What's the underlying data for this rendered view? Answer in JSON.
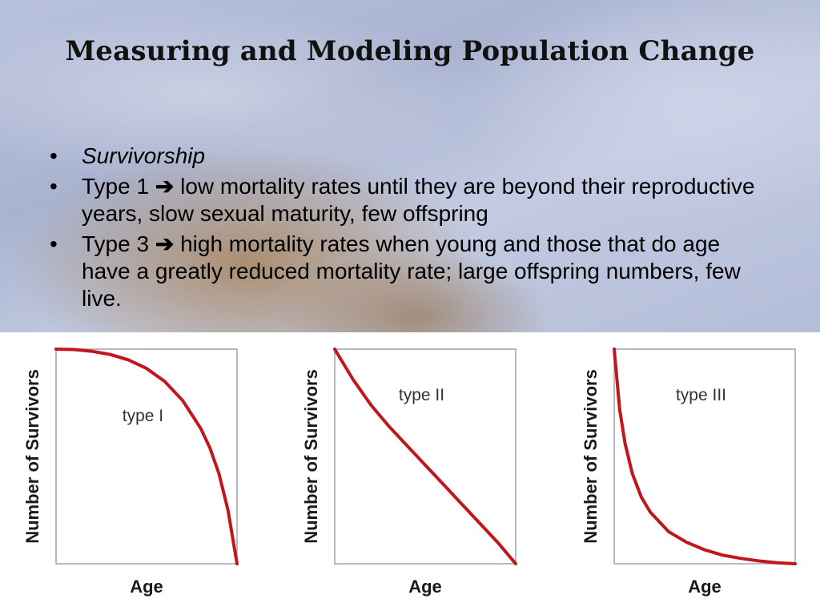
{
  "slide": {
    "title": "Measuring and Modeling Population Change",
    "bullets": [
      {
        "text": "Survivorship",
        "italic": true
      },
      {
        "prefix": "Type 1",
        "arrow": "➔",
        "text": "low mortality rates until they are beyond their reproductive years, slow sexual maturity, few offspring",
        "italic": false
      },
      {
        "prefix": "Type 3",
        "arrow": "➔",
        "text": "high mortality rates when young and those that do age have a greatly reduced mortality rate; large offspring numbers, few live.",
        "italic": false
      }
    ],
    "bullet_glyph": "•"
  },
  "colors": {
    "curve": "#c0161c",
    "axis": "#9aa3b2"
  },
  "chart_data": [
    {
      "type": "line",
      "xlabel": "Age",
      "ylabel": "Number of Survivors",
      "annotation": "type I",
      "xlim": [
        0,
        1
      ],
      "ylim": [
        0,
        1
      ],
      "series": [
        {
          "x": [
            0,
            0.1,
            0.2,
            0.3,
            0.4,
            0.5,
            0.6,
            0.7,
            0.8,
            0.85,
            0.9,
            0.95,
            1.0
          ],
          "values": [
            1.0,
            0.998,
            0.99,
            0.975,
            0.95,
            0.91,
            0.85,
            0.76,
            0.63,
            0.54,
            0.42,
            0.25,
            0.0
          ]
        }
      ]
    },
    {
      "type": "line",
      "xlabel": "Age",
      "ylabel": "Number of Survivors",
      "annotation": "type II",
      "xlim": [
        0,
        1
      ],
      "ylim": [
        0,
        1
      ],
      "series": [
        {
          "x": [
            0,
            0.1,
            0.2,
            0.3,
            0.4,
            0.5,
            0.6,
            0.7,
            0.8,
            0.9,
            1.0
          ],
          "values": [
            1.0,
            0.86,
            0.74,
            0.64,
            0.55,
            0.46,
            0.37,
            0.28,
            0.19,
            0.1,
            0.0
          ]
        }
      ]
    },
    {
      "type": "line",
      "xlabel": "Age",
      "ylabel": "Number of Survivors",
      "annotation": "type III",
      "xlim": [
        0,
        1
      ],
      "ylim": [
        0,
        1
      ],
      "series": [
        {
          "x": [
            0,
            0.03,
            0.06,
            0.1,
            0.15,
            0.2,
            0.3,
            0.4,
            0.5,
            0.6,
            0.7,
            0.8,
            0.9,
            1.0
          ],
          "values": [
            1.0,
            0.72,
            0.56,
            0.42,
            0.31,
            0.24,
            0.15,
            0.1,
            0.065,
            0.04,
            0.025,
            0.013,
            0.005,
            0.0
          ]
        }
      ]
    }
  ]
}
